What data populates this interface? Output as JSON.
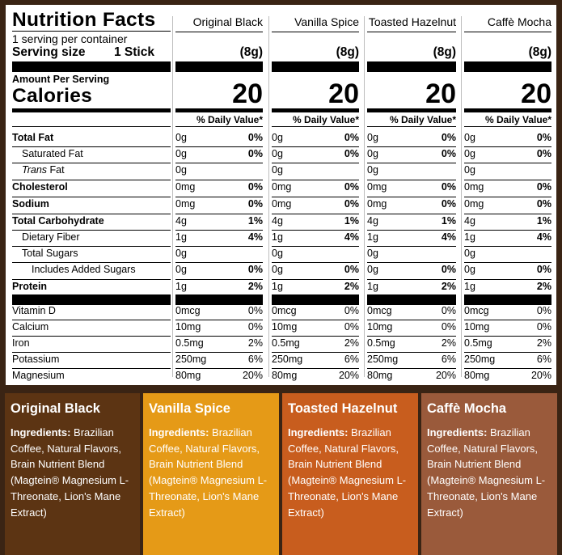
{
  "label": {
    "title": "Nutrition Facts",
    "servings_per_container": "1 serving per container",
    "serving_size_label": "Serving size",
    "serving_size_value": "1 Stick",
    "amount_per_serving": "Amount Per Serving",
    "calories_label": "Calories",
    "nutrients": [
      {
        "name": "Total Fat",
        "bold": true,
        "indent": 0
      },
      {
        "name": "Saturated Fat",
        "bold": false,
        "indent": 1
      },
      {
        "name": "Fat",
        "prefix_italic": "Trans",
        "bold": false,
        "indent": 1
      },
      {
        "name": "Cholesterol",
        "bold": true,
        "indent": 0
      },
      {
        "name": "Sodium",
        "bold": true,
        "indent": 0
      },
      {
        "name": "Total Carbohydrate",
        "bold": true,
        "indent": 0
      },
      {
        "name": "Dietary Fiber",
        "bold": false,
        "indent": 1
      },
      {
        "name": "Total Sugars",
        "bold": false,
        "indent": 1
      },
      {
        "name": "Includes Added Sugars",
        "bold": false,
        "indent": 2
      },
      {
        "name": "Protein",
        "bold": true,
        "indent": 0
      }
    ],
    "vitamins": [
      "Vitamin D",
      "Calcium",
      "Iron",
      "Potassium",
      "Magnesium"
    ]
  },
  "products": [
    {
      "name": "Original Black",
      "serving": "(8g)",
      "calories": "20",
      "dv_header": "% Daily Value*",
      "nutrients": [
        [
          "0g",
          "0%"
        ],
        [
          "0g",
          "0%"
        ],
        [
          "0g",
          ""
        ],
        [
          "0mg",
          "0%"
        ],
        [
          "0mg",
          "0%"
        ],
        [
          "4g",
          "1%"
        ],
        [
          "1g",
          "4%"
        ],
        [
          "0g",
          ""
        ],
        [
          "0g",
          "0%"
        ],
        [
          "1g",
          "2%"
        ]
      ],
      "vitamins": [
        [
          "0mcg",
          "0%"
        ],
        [
          "10mg",
          "0%"
        ],
        [
          "0.5mg",
          "2%"
        ],
        [
          "250mg",
          "6%"
        ],
        [
          "80mg",
          "20%"
        ]
      ],
      "card": {
        "title": "Original Black",
        "ingredients_label": "Ingredients:",
        "ingredients": " Brazilian Coffee, Natural Flavors, Brain Nutrient Blend (Magtein® Magnesium L-Threonate, Lion's Mane Extract)",
        "color": "#5c3413"
      }
    },
    {
      "name": "Vanilla Spice",
      "serving": "(8g)",
      "calories": "20",
      "dv_header": "% Daily Value*",
      "nutrients": [
        [
          "0g",
          "0%"
        ],
        [
          "0g",
          "0%"
        ],
        [
          "0g",
          ""
        ],
        [
          "0mg",
          "0%"
        ],
        [
          "0mg",
          "0%"
        ],
        [
          "4g",
          "1%"
        ],
        [
          "1g",
          "4%"
        ],
        [
          "0g",
          ""
        ],
        [
          "0g",
          "0%"
        ],
        [
          "1g",
          "2%"
        ]
      ],
      "vitamins": [
        [
          "0mcg",
          "0%"
        ],
        [
          "10mg",
          "0%"
        ],
        [
          "0.5mg",
          "2%"
        ],
        [
          "250mg",
          "6%"
        ],
        [
          "80mg",
          "20%"
        ]
      ],
      "card": {
        "title": "Vanilla Spice",
        "ingredients_label": "Ingredients:",
        "ingredients": " Brazilian Coffee, Natural Flavors, Brain Nutrient Blend (Magtein® Magnesium L-Threonate, Lion's Mane Extract)",
        "color": "#e59a17"
      }
    },
    {
      "name": "Toasted Hazelnut",
      "serving": "(8g)",
      "calories": "20",
      "dv_header": "% Daily Value*",
      "nutrients": [
        [
          "0g",
          "0%"
        ],
        [
          "0g",
          "0%"
        ],
        [
          "0g",
          ""
        ],
        [
          "0mg",
          "0%"
        ],
        [
          "0mg",
          "0%"
        ],
        [
          "4g",
          "1%"
        ],
        [
          "1g",
          "4%"
        ],
        [
          "0g",
          ""
        ],
        [
          "0g",
          "0%"
        ],
        [
          "1g",
          "2%"
        ]
      ],
      "vitamins": [
        [
          "0mcg",
          "0%"
        ],
        [
          "10mg",
          "0%"
        ],
        [
          "0.5mg",
          "2%"
        ],
        [
          "250mg",
          "6%"
        ],
        [
          "80mg",
          "20%"
        ]
      ],
      "card": {
        "title": "Toasted Hazelnut",
        "ingredients_label": "Ingredients:",
        "ingredients": " Brazilian Coffee, Natural Flavors, Brain Nutrient Blend (Magtein® Magnesium L-Threonate, Lion's Mane Extract)",
        "color": "#c85d1e"
      }
    },
    {
      "name": "Caffè Mocha",
      "serving": "(8g)",
      "calories": "20",
      "dv_header": "% Daily Value*",
      "nutrients": [
        [
          "0g",
          "0%"
        ],
        [
          "0g",
          "0%"
        ],
        [
          "0g",
          ""
        ],
        [
          "0mg",
          "0%"
        ],
        [
          "0mg",
          "0%"
        ],
        [
          "4g",
          "1%"
        ],
        [
          "1g",
          "4%"
        ],
        [
          "0g",
          ""
        ],
        [
          "0g",
          "0%"
        ],
        [
          "1g",
          "2%"
        ]
      ],
      "vitamins": [
        [
          "0mcg",
          "0%"
        ],
        [
          "10mg",
          "0%"
        ],
        [
          "0.5mg",
          "2%"
        ],
        [
          "250mg",
          "6%"
        ],
        [
          "80mg",
          "20%"
        ]
      ],
      "card": {
        "title": "Caffè Mocha",
        "ingredients_label": "Ingredients:",
        "ingredients": " Brazilian Coffee, Natural Flavors, Brain Nutrient Blend (Magtein® Magnesium L-Threonate, Lion's Mane Extract)",
        "color": "#9a5a3b"
      }
    }
  ]
}
